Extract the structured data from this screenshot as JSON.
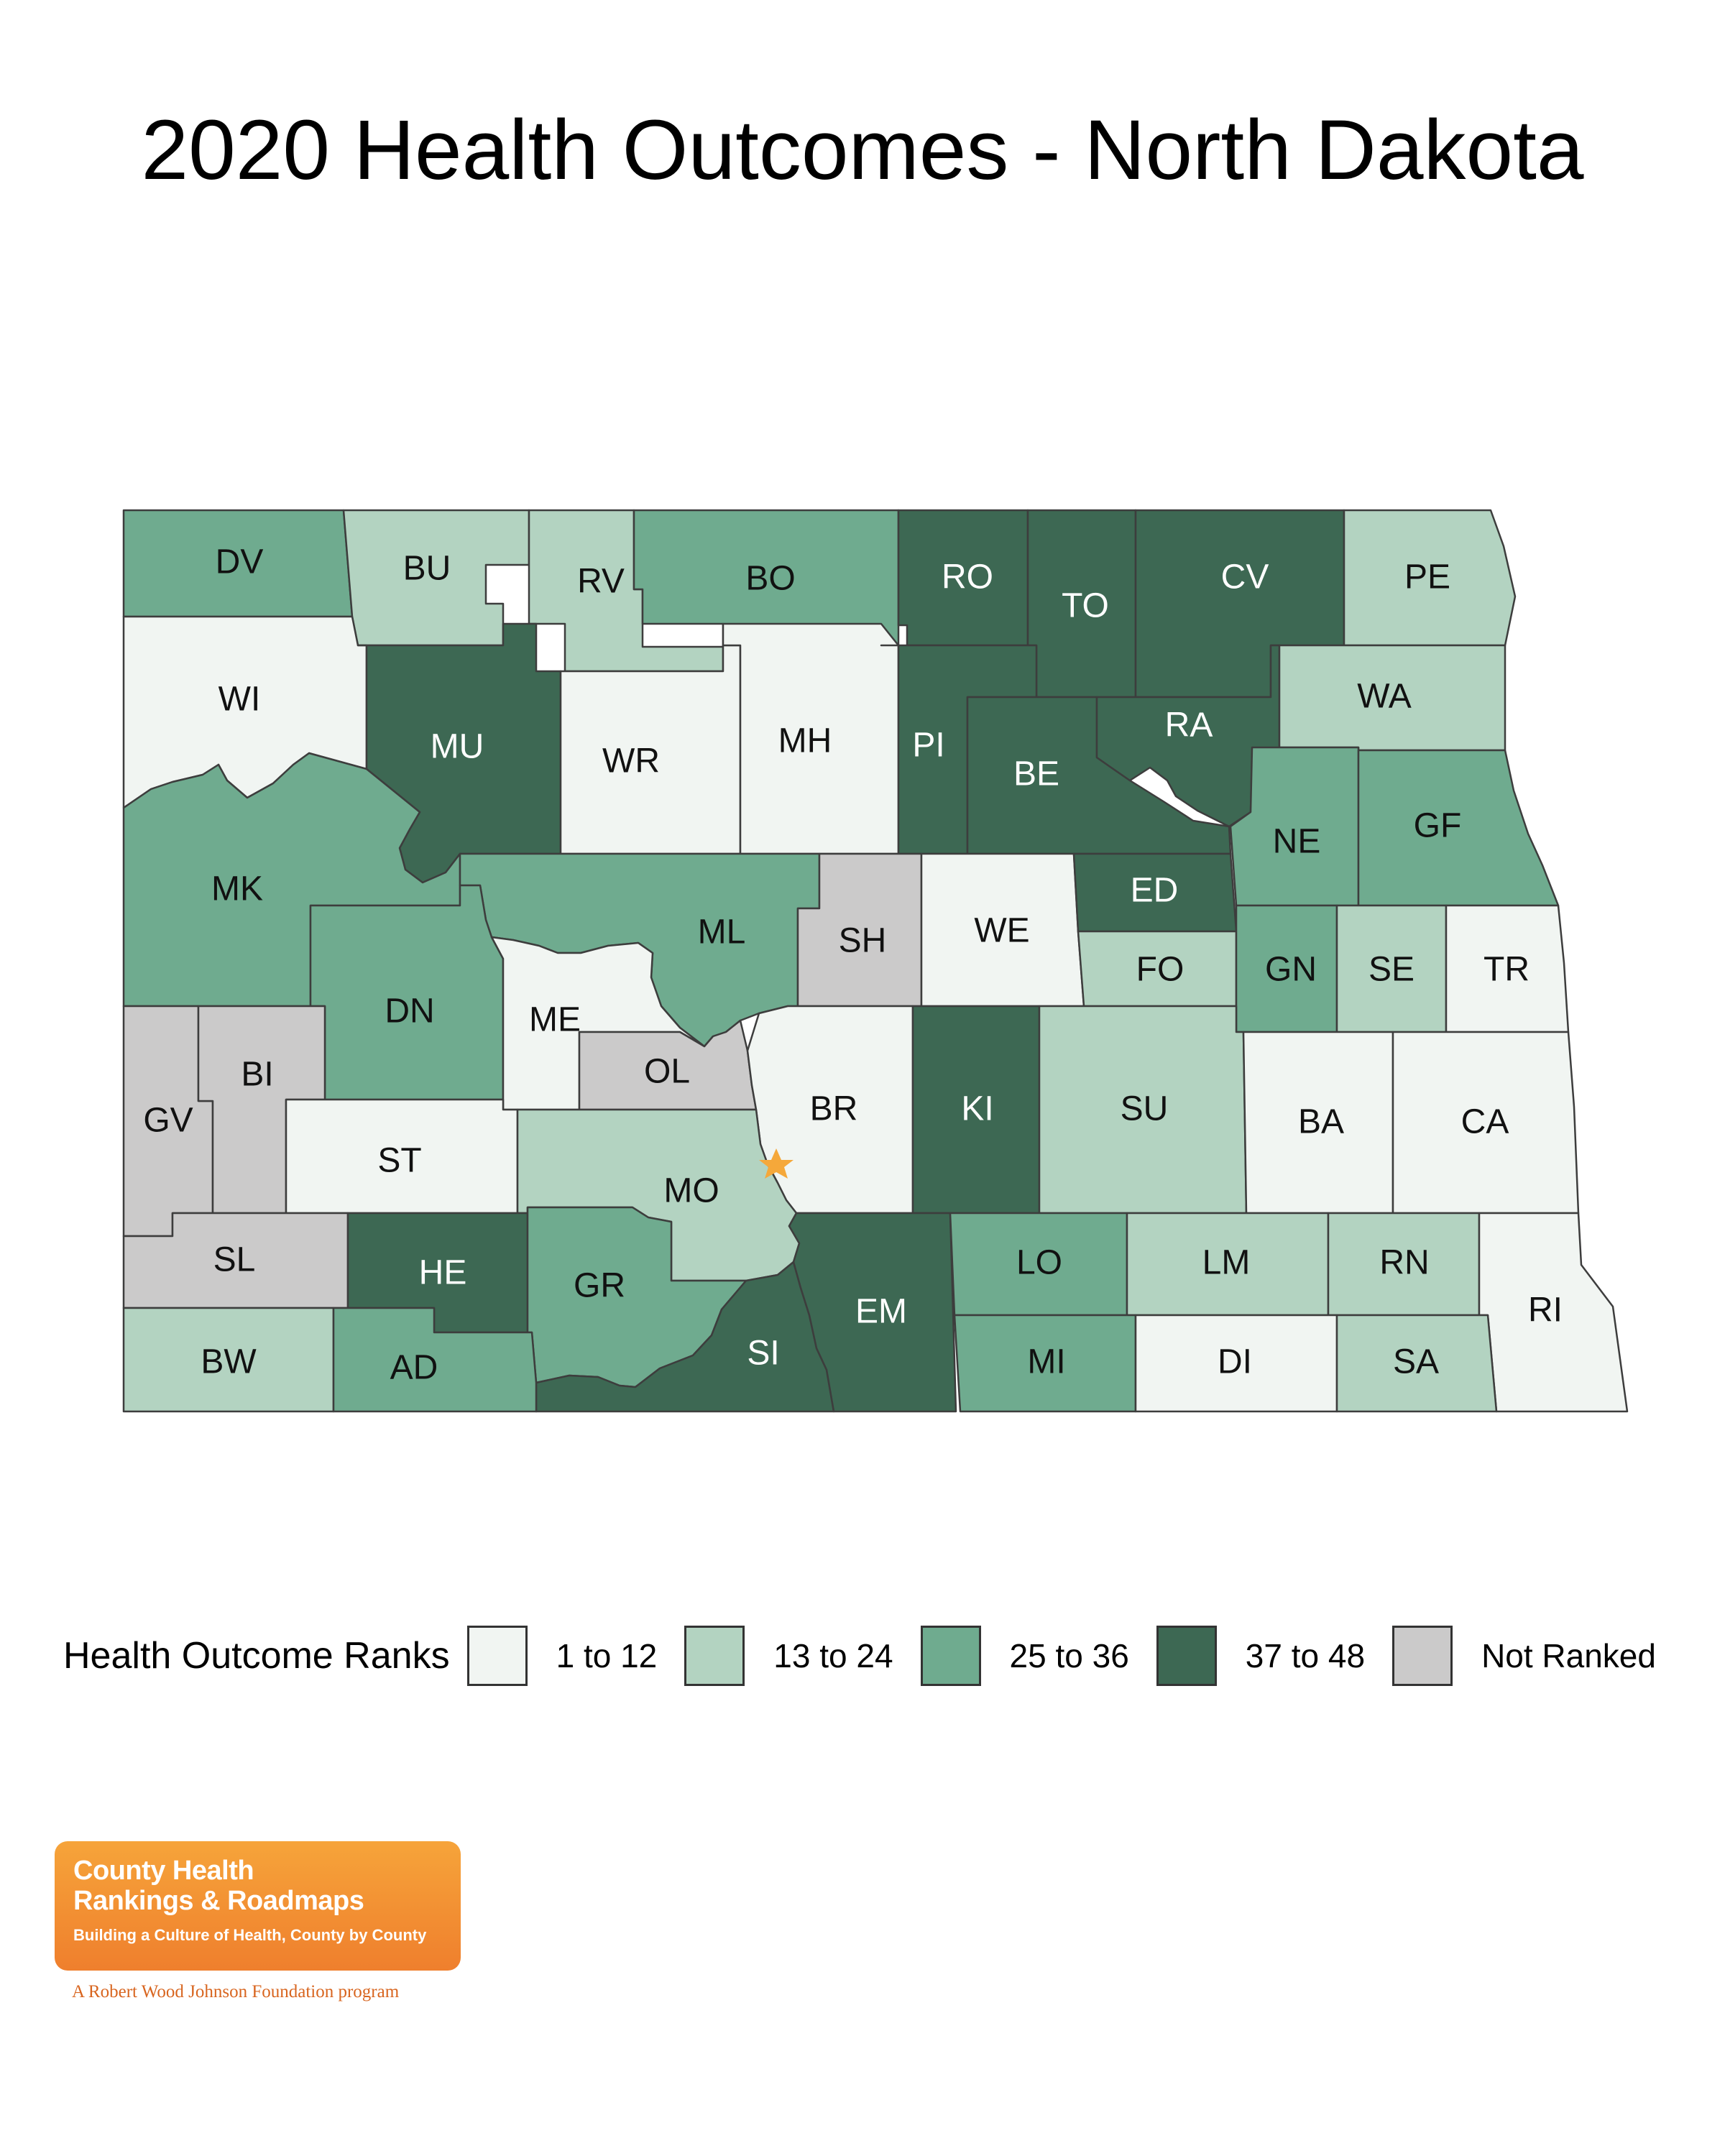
{
  "title": "2020 Health Outcomes - North Dakota",
  "colors": {
    "rank_1_12": "#f1f5f2",
    "rank_13_24": "#b3d3c1",
    "rank_25_36": "#6fab8f",
    "rank_37_48": "#3d6853",
    "not_ranked": "#cbcaca",
    "star": "#f5a83a"
  },
  "legend": {
    "title": "Health Outcome Ranks",
    "items": [
      {
        "key": "rank_1_12",
        "label": "1 to 12"
      },
      {
        "key": "rank_13_24",
        "label": "13 to 24"
      },
      {
        "key": "rank_25_36",
        "label": "25 to 36"
      },
      {
        "key": "rank_37_48",
        "label": "37 to 48"
      },
      {
        "key": "not_ranked",
        "label": "Not Ranked"
      }
    ]
  },
  "counties": [
    {
      "abbr": "DV",
      "group": "rank_25_36"
    },
    {
      "abbr": "BU",
      "group": "rank_13_24"
    },
    {
      "abbr": "RV",
      "group": "rank_13_24"
    },
    {
      "abbr": "BO",
      "group": "rank_25_36"
    },
    {
      "abbr": "RO",
      "group": "rank_37_48"
    },
    {
      "abbr": "TO",
      "group": "rank_37_48"
    },
    {
      "abbr": "CV",
      "group": "rank_37_48"
    },
    {
      "abbr": "PE",
      "group": "rank_13_24"
    },
    {
      "abbr": "WI",
      "group": "rank_1_12"
    },
    {
      "abbr": "MU",
      "group": "rank_37_48"
    },
    {
      "abbr": "WR",
      "group": "rank_1_12"
    },
    {
      "abbr": "MH",
      "group": "rank_1_12"
    },
    {
      "abbr": "PI",
      "group": "rank_37_48"
    },
    {
      "abbr": "BE",
      "group": "rank_37_48"
    },
    {
      "abbr": "RA",
      "group": "rank_37_48"
    },
    {
      "abbr": "WA",
      "group": "rank_13_24"
    },
    {
      "abbr": "NE",
      "group": "rank_25_36"
    },
    {
      "abbr": "GF",
      "group": "rank_25_36"
    },
    {
      "abbr": "MK",
      "group": "rank_25_36"
    },
    {
      "abbr": "ML",
      "group": "rank_25_36"
    },
    {
      "abbr": "SH",
      "group": "not_ranked"
    },
    {
      "abbr": "WE",
      "group": "rank_1_12"
    },
    {
      "abbr": "ED",
      "group": "rank_37_48"
    },
    {
      "abbr": "FO",
      "group": "rank_13_24"
    },
    {
      "abbr": "GN",
      "group": "rank_25_36"
    },
    {
      "abbr": "SE",
      "group": "rank_13_24"
    },
    {
      "abbr": "TR",
      "group": "rank_1_12"
    },
    {
      "abbr": "DN",
      "group": "rank_25_36"
    },
    {
      "abbr": "ME",
      "group": "rank_1_12"
    },
    {
      "abbr": "OL",
      "group": "not_ranked"
    },
    {
      "abbr": "BR",
      "group": "rank_1_12"
    },
    {
      "abbr": "KI",
      "group": "rank_37_48"
    },
    {
      "abbr": "SU",
      "group": "rank_13_24"
    },
    {
      "abbr": "BA",
      "group": "rank_1_12"
    },
    {
      "abbr": "CA",
      "group": "rank_1_12"
    },
    {
      "abbr": "GV",
      "group": "not_ranked"
    },
    {
      "abbr": "BI",
      "group": "not_ranked"
    },
    {
      "abbr": "ST",
      "group": "rank_1_12"
    },
    {
      "abbr": "MO",
      "group": "rank_13_24"
    },
    {
      "abbr": "SL",
      "group": "not_ranked"
    },
    {
      "abbr": "HE",
      "group": "rank_37_48"
    },
    {
      "abbr": "GR",
      "group": "rank_25_36"
    },
    {
      "abbr": "SI",
      "group": "rank_37_48"
    },
    {
      "abbr": "EM",
      "group": "rank_37_48"
    },
    {
      "abbr": "LO",
      "group": "rank_25_36"
    },
    {
      "abbr": "LM",
      "group": "rank_13_24"
    },
    {
      "abbr": "RN",
      "group": "rank_13_24"
    },
    {
      "abbr": "RI",
      "group": "rank_1_12"
    },
    {
      "abbr": "BW",
      "group": "rank_13_24"
    },
    {
      "abbr": "AD",
      "group": "rank_25_36"
    },
    {
      "abbr": "MI",
      "group": "rank_25_36"
    },
    {
      "abbr": "DI",
      "group": "rank_1_12"
    },
    {
      "abbr": "SA",
      "group": "rank_13_24"
    }
  ],
  "logo": {
    "line1": "County Health",
    "line2": "Rankings & Roadmaps",
    "tagline": "Building a Culture of Health, County by County",
    "program": "A Robert Wood Johnson Foundation program"
  }
}
